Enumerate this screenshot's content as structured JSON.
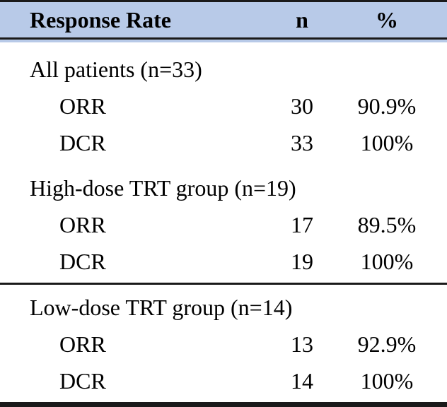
{
  "table": {
    "header_bg_color": "#b8cae8",
    "rule_color": "#1a1a1a",
    "text_color": "#000000",
    "columns": [
      "Response Rate",
      "n",
      "%"
    ],
    "sections": [
      {
        "label": "All patients (n=33)",
        "rows": [
          {
            "label": "ORR",
            "n": "30",
            "pct": "90.9%"
          },
          {
            "label": "DCR",
            "n": "33",
            "pct": "100%"
          }
        ]
      },
      {
        "label": "High-dose TRT group (n=19)",
        "rows": [
          {
            "label": "ORR",
            "n": "17",
            "pct": "89.5%"
          },
          {
            "label": "DCR",
            "n": "19",
            "pct": "100%"
          }
        ]
      },
      {
        "label": "Low-dose TRT group (n=14)",
        "rows": [
          {
            "label": "ORR",
            "n": "13",
            "pct": "92.9%"
          },
          {
            "label": "DCR",
            "n": "14",
            "pct": "100%"
          }
        ]
      }
    ]
  }
}
